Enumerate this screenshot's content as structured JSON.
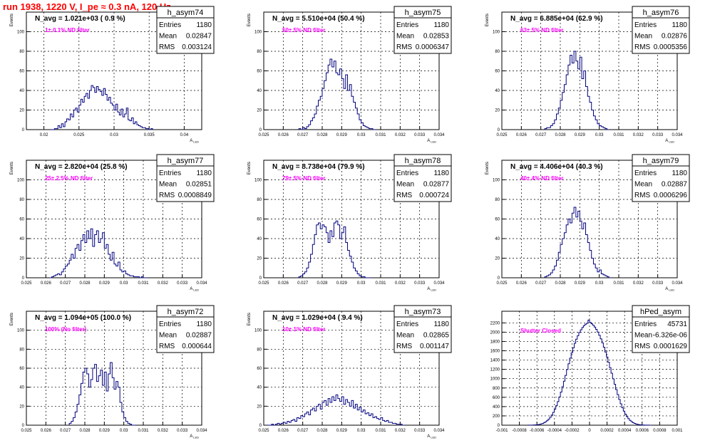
{
  "page_title": "run 1938,  1220 V, I_pe ≈ 0.3 nA, 120 Hz",
  "colors": {
    "title": "#ff0000",
    "hist_line": "#00007f",
    "annotation": "#ff00ff",
    "grid": "#000000"
  },
  "chart_data": [
    {
      "type": "histogram",
      "name": "h_asym74",
      "navg": "N_avg = 1.021e+03 ( 0.9 %)",
      "annotation": "1± 0.1% ND filter",
      "stats": [
        [
          "Entries",
          "1180"
        ],
        [
          "Mean",
          "0.02847"
        ],
        [
          "RMS",
          "0.003124"
        ]
      ],
      "ylabel": "Events",
      "xlabel": "A_LED",
      "xlim": [
        0.0175,
        0.0425
      ],
      "ylim": [
        0,
        120
      ],
      "xticks": [
        0.02,
        0.025,
        0.03,
        0.035,
        0.04
      ],
      "xtick_labels": [
        "0.02",
        "0.025",
        "0.03",
        "0.035",
        "0.04"
      ],
      "yticks": [
        0,
        20,
        40,
        60,
        80,
        100
      ],
      "ytick_labels": [
        "0",
        "20",
        "40",
        "60",
        "80",
        "100"
      ],
      "bin_edges": [
        0.021,
        0.0355
      ],
      "counts": [
        0,
        0,
        1,
        1,
        4,
        2,
        6,
        3,
        8,
        11,
        10,
        16,
        13,
        20,
        22,
        18,
        25,
        31,
        28,
        34,
        37,
        32,
        40,
        45,
        43,
        38,
        44,
        41,
        39,
        35,
        42,
        36,
        30,
        33,
        27,
        25,
        20,
        26,
        18,
        15,
        21,
        13,
        16,
        22,
        10,
        9,
        12,
        6,
        8,
        5,
        4,
        3,
        2,
        2,
        1,
        1,
        0,
        1
      ]
    },
    {
      "type": "histogram",
      "name": "h_asym75",
      "navg": "N_avg = 5.510e+04 (50.4 %)",
      "annotation": "50± 5% ND filter",
      "stats": [
        [
          "Entries",
          "1180"
        ],
        [
          "Mean",
          "0.02853"
        ],
        [
          "RMS",
          "0.0006347"
        ]
      ],
      "ylabel": "Events",
      "xlabel": "A_LED",
      "xlim": [
        0.025,
        0.034
      ],
      "ylim": [
        0,
        120
      ],
      "xticks": [
        0.025,
        0.026,
        0.027,
        0.028,
        0.029,
        0.03,
        0.031,
        0.032,
        0.033,
        0.034
      ],
      "xtick_labels": [
        "0.025",
        "0.026",
        "0.027",
        "0.028",
        "0.029",
        "0.03",
        "0.031",
        "0.032",
        "0.033",
        "0.034"
      ],
      "yticks": [
        0,
        20,
        40,
        60,
        80,
        100
      ],
      "ytick_labels": [
        "0",
        "20",
        "40",
        "60",
        "80",
        "100"
      ],
      "bin_edges": [
        0.0268,
        0.0307
      ],
      "counts": [
        1,
        0,
        2,
        1,
        3,
        5,
        9,
        12,
        16,
        24,
        30,
        34,
        42,
        50,
        58,
        66,
        72,
        64,
        70,
        58,
        56,
        62,
        52,
        42,
        56,
        40,
        46,
        34,
        28,
        22,
        16,
        10,
        7,
        4,
        3,
        2,
        1,
        1,
        0
      ]
    },
    {
      "type": "histogram",
      "name": "h_asym76",
      "navg": "N_avg = 6.885e+04 (62.9 %)",
      "annotation": "63± 5% ND filter",
      "stats": [
        [
          "Entries",
          "1180"
        ],
        [
          "Mean",
          "0.02876"
        ],
        [
          "RMS",
          "0.0005356"
        ]
      ],
      "ylabel": "Events",
      "xlabel": "A_LED",
      "xlim": [
        0.025,
        0.034
      ],
      "ylim": [
        0,
        120
      ],
      "xticks": [
        0.025,
        0.026,
        0.027,
        0.028,
        0.029,
        0.03,
        0.031,
        0.032,
        0.033,
        0.034
      ],
      "xtick_labels": [
        "0.025",
        "0.026",
        "0.027",
        "0.028",
        "0.029",
        "0.03",
        "0.031",
        "0.032",
        "0.033",
        "0.034"
      ],
      "yticks": [
        0,
        20,
        40,
        60,
        80,
        100
      ],
      "ytick_labels": [
        "0",
        "20",
        "40",
        "60",
        "80",
        "100"
      ],
      "bin_edges": [
        0.0272,
        0.0305
      ],
      "counts": [
        1,
        2,
        2,
        4,
        6,
        10,
        16,
        22,
        30,
        38,
        46,
        56,
        66,
        76,
        68,
        80,
        70,
        62,
        74,
        52,
        60,
        44,
        34,
        28,
        20,
        14,
        10,
        6,
        4,
        3,
        2,
        1,
        0
      ]
    },
    {
      "type": "histogram",
      "name": "h_asym77",
      "navg": "N_avg = 2.820e+04 (25.8 %)",
      "annotation": "25± 2.5% ND filter",
      "stats": [
        [
          "Entries",
          "1180"
        ],
        [
          "Mean",
          "0.02851"
        ],
        [
          "RMS",
          "0.0008849"
        ]
      ],
      "ylabel": "Events",
      "xlabel": "A_LED",
      "xlim": [
        0.025,
        0.034
      ],
      "ylim": [
        0,
        120
      ],
      "xticks": [
        0.025,
        0.026,
        0.027,
        0.028,
        0.029,
        0.03,
        0.031,
        0.032,
        0.033,
        0.034
      ],
      "xtick_labels": [
        "0.025",
        "0.026",
        "0.027",
        "0.028",
        "0.029",
        "0.03",
        "0.031",
        "0.032",
        "0.033",
        "0.034"
      ],
      "yticks": [
        0,
        20,
        40,
        60,
        80,
        100
      ],
      "ytick_labels": [
        "0",
        "20",
        "40",
        "60",
        "80",
        "100"
      ],
      "bin_edges": [
        0.0262,
        0.0312
      ],
      "counts": [
        0,
        1,
        2,
        3,
        4,
        3,
        6,
        9,
        12,
        14,
        18,
        24,
        20,
        30,
        34,
        28,
        38,
        44,
        36,
        48,
        40,
        50,
        32,
        44,
        48,
        36,
        40,
        46,
        30,
        34,
        24,
        18,
        26,
        14,
        12,
        16,
        8,
        6,
        7,
        4,
        3,
        2,
        2,
        1,
        1,
        1,
        0,
        1,
        0,
        0
      ]
    },
    {
      "type": "histogram",
      "name": "h_asym78",
      "navg": "N_avg = 8.738e+04 (79.9 %)",
      "annotation": "79± 5% ND filter",
      "stats": [
        [
          "Entries",
          "1180"
        ],
        [
          "Mean",
          "0.02877"
        ],
        [
          "RMS",
          "0.000724"
        ]
      ],
      "ylabel": "Events",
      "xlabel": "A_LED",
      "xlim": [
        0.025,
        0.034
      ],
      "ylim": [
        0,
        120
      ],
      "xticks": [
        0.025,
        0.026,
        0.027,
        0.028,
        0.029,
        0.03,
        0.031,
        0.032,
        0.033,
        0.034
      ],
      "xtick_labels": [
        "0.025",
        "0.026",
        "0.027",
        "0.028",
        "0.029",
        "0.03",
        "0.031",
        "0.032",
        "0.033",
        "0.034"
      ],
      "yticks": [
        0,
        20,
        40,
        60,
        80,
        100
      ],
      "ytick_labels": [
        "0",
        "20",
        "40",
        "60",
        "80",
        "100"
      ],
      "bin_edges": [
        0.0268,
        0.0305
      ],
      "counts": [
        1,
        2,
        4,
        6,
        10,
        16,
        24,
        34,
        44,
        54,
        56,
        50,
        54,
        52,
        46,
        36,
        48,
        42,
        56,
        58,
        54,
        40,
        46,
        52,
        36,
        28,
        22,
        16,
        10,
        7,
        4,
        2,
        1,
        1,
        0,
        0,
        0
      ]
    },
    {
      "type": "histogram",
      "name": "h_asym79",
      "navg": "N_avg = 4.406e+04 (40.3 %)",
      "annotation": "40± 4% ND filter",
      "stats": [
        [
          "Entries",
          "1180"
        ],
        [
          "Mean",
          "0.02887"
        ],
        [
          "RMS",
          "0.0006296"
        ]
      ],
      "ylabel": "Events",
      "xlabel": "A_LED",
      "xlim": [
        0.025,
        0.034
      ],
      "ylim": [
        0,
        120
      ],
      "xticks": [
        0.025,
        0.026,
        0.027,
        0.028,
        0.029,
        0.03,
        0.031,
        0.032,
        0.033,
        0.034
      ],
      "xtick_labels": [
        "0.025",
        "0.026",
        "0.027",
        "0.028",
        "0.029",
        "0.03",
        "0.031",
        "0.032",
        "0.033",
        "0.034"
      ],
      "yticks": [
        0,
        20,
        40,
        60,
        80,
        100
      ],
      "ytick_labels": [
        "0",
        "20",
        "40",
        "60",
        "80",
        "100"
      ],
      "bin_edges": [
        0.0272,
        0.0306
      ],
      "counts": [
        1,
        2,
        3,
        5,
        8,
        12,
        18,
        26,
        34,
        40,
        46,
        54,
        60,
        56,
        66,
        72,
        62,
        68,
        58,
        50,
        56,
        44,
        36,
        28,
        20,
        14,
        10,
        6,
        8,
        4,
        3,
        2,
        1,
        0
      ]
    },
    {
      "type": "histogram",
      "name": "h_asym72",
      "navg": "N_avg = 1.094e+05 (100.0 %)",
      "annotation": "100% (No filter)",
      "stats": [
        [
          "Entries",
          "1180"
        ],
        [
          "Mean",
          "0.02887"
        ],
        [
          "RMS",
          "0.000644"
        ]
      ],
      "ylabel": "Events",
      "xlabel": "A_LED",
      "xlim": [
        0.025,
        0.034
      ],
      "ylim": [
        0,
        120
      ],
      "xticks": [
        0.025,
        0.026,
        0.027,
        0.028,
        0.029,
        0.03,
        0.031,
        0.032,
        0.033,
        0.034
      ],
      "xtick_labels": [
        "0.025",
        "0.026",
        "0.027",
        "0.028",
        "0.029",
        "0.03",
        "0.031",
        "0.032",
        "0.033",
        "0.034"
      ],
      "yticks": [
        0,
        20,
        40,
        60,
        80,
        100
      ],
      "ytick_labels": [
        "0",
        "20",
        "40",
        "60",
        "80",
        "100"
      ],
      "bin_edges": [
        0.0272,
        0.0306
      ],
      "counts": [
        2,
        4,
        8,
        14,
        22,
        32,
        44,
        56,
        60,
        54,
        40,
        48,
        60,
        64,
        46,
        52,
        58,
        42,
        56,
        36,
        54,
        66,
        50,
        38,
        46,
        40,
        24,
        14,
        8,
        4,
        2,
        1,
        0,
        0
      ]
    },
    {
      "type": "histogram",
      "name": "h_asym73",
      "navg": "N_avg = 1.029e+04 ( 9.4 %)",
      "annotation": "10± 1% ND filter",
      "stats": [
        [
          "Entries",
          "1180"
        ],
        [
          "Mean",
          "0.02865"
        ],
        [
          "RMS",
          "0.001147"
        ]
      ],
      "ylabel": "Events",
      "xlabel": "A_LED",
      "xlim": [
        0.025,
        0.034
      ],
      "ylim": [
        0,
        120
      ],
      "xticks": [
        0.025,
        0.026,
        0.027,
        0.028,
        0.029,
        0.03,
        0.031,
        0.032,
        0.033,
        0.034
      ],
      "xtick_labels": [
        "0.025",
        "0.026",
        "0.027",
        "0.028",
        "0.029",
        "0.03",
        "0.031",
        "0.032",
        "0.033",
        "0.034"
      ],
      "yticks": [
        0,
        20,
        40,
        60,
        80,
        100
      ],
      "ytick_labels": [
        "0",
        "20",
        "40",
        "60",
        "80",
        "100"
      ],
      "bin_edges": [
        0.0252,
        0.0322
      ],
      "counts": [
        0,
        0,
        1,
        0,
        1,
        2,
        1,
        2,
        3,
        2,
        4,
        3,
        5,
        6,
        4,
        8,
        7,
        10,
        9,
        12,
        14,
        11,
        16,
        18,
        15,
        20,
        22,
        17,
        24,
        26,
        21,
        28,
        24,
        30,
        26,
        32,
        28,
        25,
        30,
        22,
        27,
        24,
        20,
        26,
        18,
        22,
        16,
        19,
        14,
        16,
        12,
        13,
        10,
        12,
        8,
        9,
        7,
        6,
        8,
        5,
        4,
        5,
        3,
        3,
        2,
        2,
        1,
        1,
        1,
        0
      ]
    },
    {
      "type": "histogram",
      "name": "hPed_asym",
      "navg": "",
      "annotation": "Shutter Closed",
      "stats": [
        [
          "Entries",
          "45731"
        ],
        [
          "Mean",
          "-6.326e-06"
        ],
        [
          "RMS",
          "0.0001629"
        ]
      ],
      "ylabel": "",
      "xlabel": "",
      "xlim": [
        -0.001,
        0.001
      ],
      "ylim": [
        0,
        2450
      ],
      "xticks": [
        -0.001,
        -0.0008,
        -0.0006,
        -0.0004,
        -0.0002,
        0,
        0.0002,
        0.0004,
        0.0006,
        0.0008,
        0.001
      ],
      "xtick_labels": [
        "-0.001",
        "-0.0008",
        "-0.0006",
        "-0.0004",
        "-0.0002",
        "0",
        "0.0002",
        "0.0004",
        "0.0006",
        "0.0008",
        "0.001"
      ],
      "yticks": [
        0,
        200,
        400,
        600,
        800,
        1000,
        1200,
        1400,
        1600,
        1800,
        2000,
        2200
      ],
      "ytick_labels": [
        "0",
        "200",
        "400",
        "600",
        "800",
        "1000",
        "1200",
        "1400",
        "1600",
        "1800",
        "2000",
        "2200"
      ],
      "bin_edges": [
        -0.0007,
        0.0007
      ],
      "counts": [
        1,
        1,
        2,
        3,
        5,
        8,
        11,
        18,
        26,
        37,
        52,
        72,
        98,
        130,
        170,
        218,
        276,
        344,
        420,
        508,
        606,
        712,
        826,
        946,
        1070,
        1196,
        1320,
        1442,
        1556,
        1662,
        1760,
        1848,
        1924,
        1992,
        2050,
        2100,
        2140,
        2170,
        2192,
        2260,
        2210,
        2180,
        2150,
        2110,
        2060,
        2002,
        1934,
        1856,
        1770,
        1676,
        1574,
        1466,
        1354,
        1236,
        1118,
        998,
        880,
        766,
        656,
        554,
        460,
        376,
        302,
        238,
        184,
        140,
        104,
        76,
        54,
        38,
        26,
        17,
        11,
        7,
        4,
        3,
        2,
        1,
        1,
        0
      ]
    }
  ]
}
